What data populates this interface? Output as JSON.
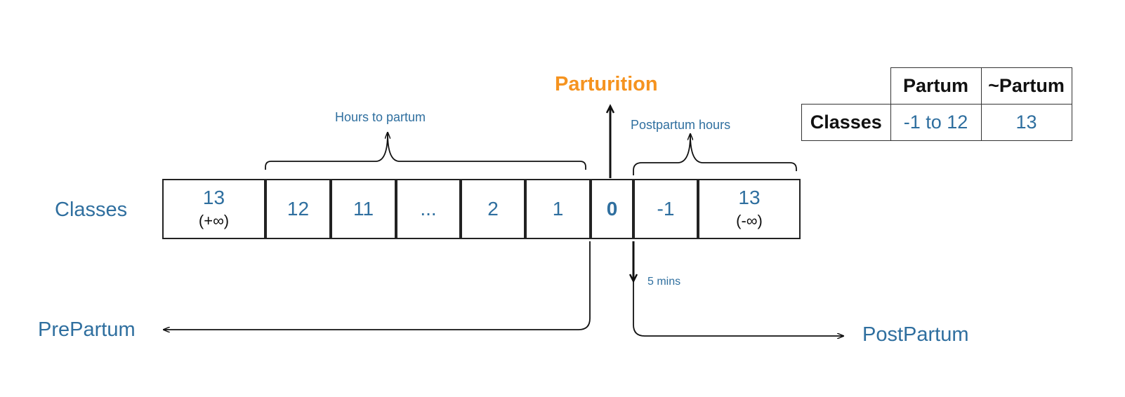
{
  "labels": {
    "classes": "Classes",
    "parturition": "Parturition",
    "hours_to_partum": "Hours to partum",
    "postpartum_hours": "Postpartum hours",
    "prepartum": "PrePartum",
    "postpartum": "PostPartum",
    "five_mins": "5 mins"
  },
  "cells": [
    {
      "main": "13",
      "sub": "(+∞)"
    },
    {
      "main": "12"
    },
    {
      "main": "11"
    },
    {
      "main": "..."
    },
    {
      "main": "2"
    },
    {
      "main": "1"
    },
    {
      "main": "0"
    },
    {
      "main": "-1"
    },
    {
      "main": "13",
      "sub": "(-∞)"
    }
  ],
  "table": {
    "col1": "Partum",
    "col2": "~Partum",
    "row_label": "Classes",
    "val1": "-1 to 12",
    "val2": "13"
  },
  "colors": {
    "accent_orange": "#f5931f",
    "text_blue": "#2f6f9f",
    "line": "#111111"
  }
}
